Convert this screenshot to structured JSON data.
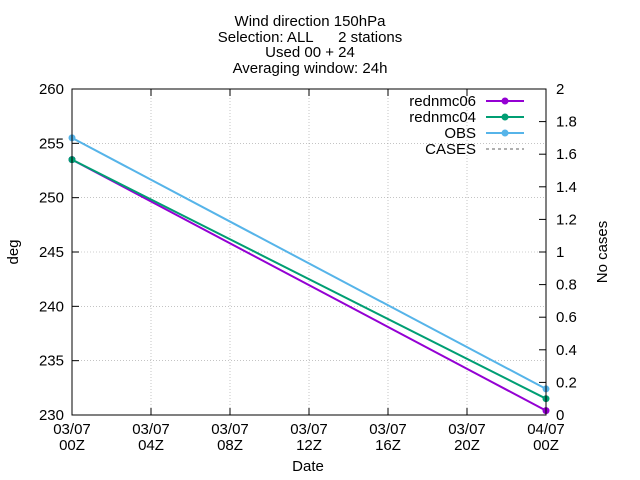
{
  "chart_data": {
    "type": "line",
    "title_lines": [
      "Wind direction 150hPa",
      "Selection: ALL      2 stations",
      "Used 00 + 24",
      "Averaging window: 24h"
    ],
    "xlabel": "Date",
    "ylabel": "deg",
    "y2label": "No cases",
    "x_ticks": [
      {
        "x": 0,
        "line1": "03/07",
        "line2": "00Z"
      },
      {
        "x": 4,
        "line1": "03/07",
        "line2": "04Z"
      },
      {
        "x": 8,
        "line1": "03/07",
        "line2": "08Z"
      },
      {
        "x": 12,
        "line1": "03/07",
        "line2": "12Z"
      },
      {
        "x": 16,
        "line1": "03/07",
        "line2": "16Z"
      },
      {
        "x": 20,
        "line1": "03/07",
        "line2": "20Z"
      },
      {
        "x": 24,
        "line1": "04/07",
        "line2": "00Z"
      }
    ],
    "xlim": [
      0,
      24
    ],
    "ylim": [
      230,
      260
    ],
    "y_ticks": [
      230,
      235,
      240,
      245,
      250,
      255,
      260
    ],
    "y2lim": [
      0,
      2
    ],
    "y2_ticks": [
      "0",
      "0.2",
      "0.4",
      "0.6",
      "0.8",
      "1",
      "1.2",
      "1.4",
      "1.6",
      "1.8",
      "2"
    ],
    "legend_position": "top-right",
    "series": [
      {
        "name": "rednmc06",
        "color": "#9400d3",
        "style": "linespoints",
        "points": [
          [
            0,
            253.5
          ],
          [
            24,
            230.4
          ]
        ]
      },
      {
        "name": "rednmc04",
        "color": "#009e73",
        "style": "linespoints",
        "points": [
          [
            0,
            253.5
          ],
          [
            24,
            231.5
          ]
        ]
      },
      {
        "name": "OBS",
        "color": "#56b4e9",
        "style": "linespoints",
        "points": [
          [
            0,
            255.5
          ],
          [
            24,
            232.4
          ]
        ]
      },
      {
        "name": "CASES",
        "color": "#808080",
        "style": "dashed",
        "points": []
      }
    ]
  }
}
